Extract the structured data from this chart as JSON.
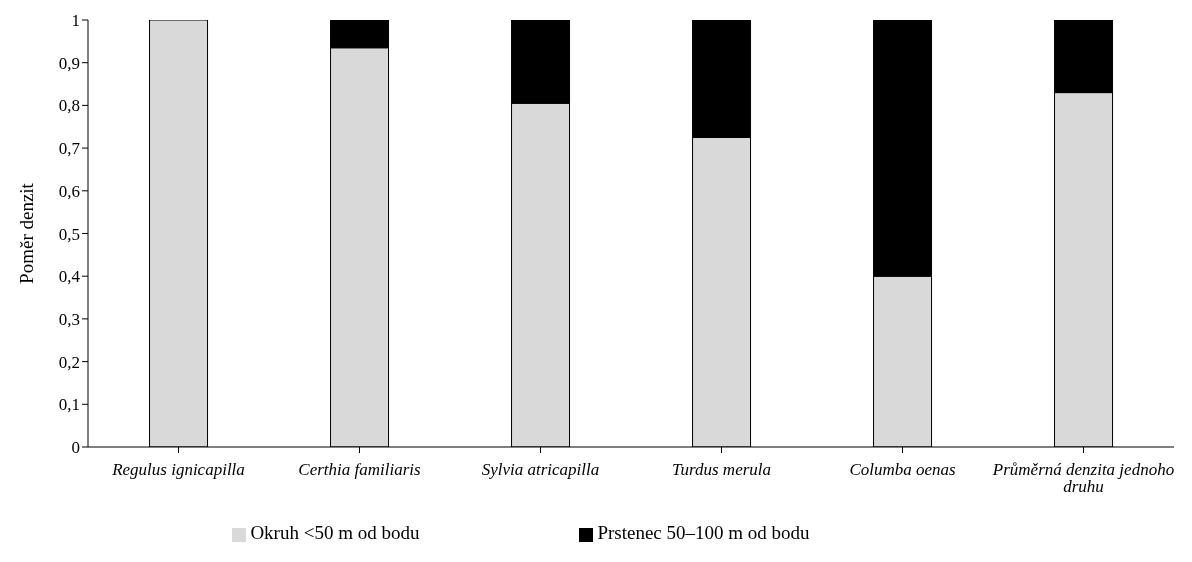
{
  "chart_data": {
    "type": "bar",
    "stacked": true,
    "ylabel": "Poměr denzit",
    "categories": [
      "Regulus ignicapilla",
      "Certhia familiaris",
      "Sylvia atricapilla",
      "Turdus merula",
      "Columba oenas",
      "Průměrná denzita jednoho druhu"
    ],
    "series": [
      {
        "name": "Okruh <50 m od bodu",
        "color": "#d9d9d9",
        "values": [
          1.0,
          0.935,
          0.805,
          0.725,
          0.4,
          0.83
        ]
      },
      {
        "name": "Prstenec 50–100 m od bodu",
        "color": "#000000",
        "values": [
          0,
          0.065,
          0.195,
          0.275,
          0.6,
          0.17
        ]
      }
    ],
    "ylim": [
      0,
      1
    ],
    "yticks": [
      0,
      {
        "value": 0.1,
        "label": "0,1"
      },
      {
        "value": 0.2,
        "label": "0,2"
      },
      {
        "value": 0.3,
        "label": "0,3"
      },
      {
        "value": 0.4,
        "label": "0,4"
      },
      {
        "value": 0.5,
        "label": "0,5"
      },
      {
        "value": 0.6,
        "label": "0,6"
      },
      {
        "value": 0.7,
        "label": "0,7"
      },
      {
        "value": 0.8,
        "label": "0,8"
      },
      {
        "value": 0.9,
        "label": "0,9"
      },
      1
    ],
    "grid": false,
    "legend": "bottom"
  }
}
